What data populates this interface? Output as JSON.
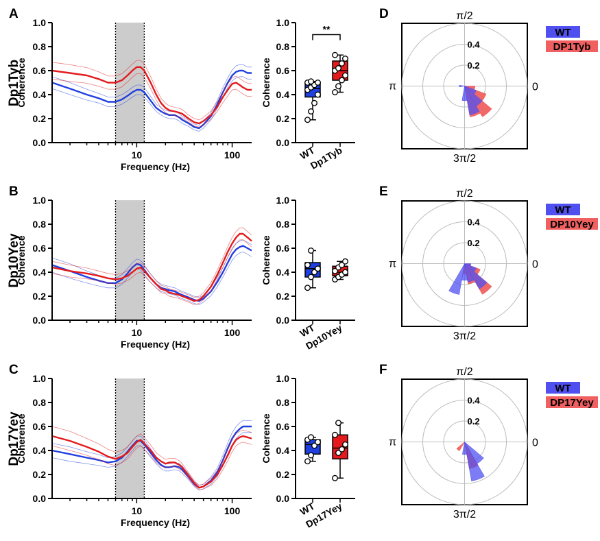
{
  "colors": {
    "wt": "#1f3fe0",
    "dp": "#e41a1c",
    "wt_fill": "#5050f0",
    "dp_fill": "#f06060",
    "overlap": "#5a2aa8",
    "shade": "#cccccc"
  },
  "chart_data": [
    {
      "panel": "A",
      "type": "line",
      "row_label": "Dp1Tyb",
      "xlabel": "Frequency (Hz)",
      "ylabel": "Coherence",
      "x_scale": "log",
      "xlim": [
        1.3,
        160
      ],
      "ylim": [
        0,
        1.0
      ],
      "xticks": [
        "10",
        "100"
      ],
      "yticks": [
        "0.0",
        "0.2",
        "0.4",
        "0.6",
        "0.8",
        "1.0"
      ],
      "shaded_band_hz": [
        6,
        12
      ],
      "x": [
        1.3,
        2,
        3,
        4,
        5,
        6,
        7,
        8,
        9,
        10,
        11,
        12,
        14,
        16,
        18,
        20,
        22,
        25,
        28,
        30,
        35,
        40,
        45,
        50,
        60,
        70,
        80,
        90,
        100,
        110,
        120,
        130,
        145,
        160
      ],
      "series": [
        {
          "key": "wt",
          "values": [
            0.5,
            0.45,
            0.4,
            0.37,
            0.34,
            0.34,
            0.36,
            0.39,
            0.42,
            0.44,
            0.44,
            0.42,
            0.35,
            0.29,
            0.26,
            0.24,
            0.23,
            0.23,
            0.21,
            0.19,
            0.16,
            0.13,
            0.12,
            0.15,
            0.22,
            0.32,
            0.42,
            0.5,
            0.56,
            0.59,
            0.6,
            0.6,
            0.58,
            0.58
          ],
          "sem": [
            0.05,
            0.05,
            0.045,
            0.04,
            0.04,
            0.04,
            0.04,
            0.04,
            0.04,
            0.04,
            0.04,
            0.04,
            0.035,
            0.03,
            0.03,
            0.03,
            0.03,
            0.03,
            0.03,
            0.03,
            0.025,
            0.025,
            0.025,
            0.03,
            0.03,
            0.035,
            0.04,
            0.04,
            0.045,
            0.05,
            0.05,
            0.05,
            0.05,
            0.05
          ]
        },
        {
          "key": "dp",
          "values": [
            0.6,
            0.58,
            0.56,
            0.53,
            0.5,
            0.5,
            0.52,
            0.56,
            0.6,
            0.63,
            0.63,
            0.6,
            0.5,
            0.4,
            0.33,
            0.29,
            0.27,
            0.26,
            0.25,
            0.24,
            0.2,
            0.17,
            0.16,
            0.18,
            0.23,
            0.3,
            0.38,
            0.44,
            0.49,
            0.5,
            0.48,
            0.46,
            0.44,
            0.44
          ],
          "sem": [
            0.07,
            0.07,
            0.065,
            0.06,
            0.055,
            0.055,
            0.055,
            0.055,
            0.055,
            0.055,
            0.055,
            0.055,
            0.05,
            0.045,
            0.04,
            0.04,
            0.035,
            0.035,
            0.035,
            0.035,
            0.03,
            0.03,
            0.03,
            0.03,
            0.035,
            0.04,
            0.045,
            0.05,
            0.05,
            0.055,
            0.055,
            0.055,
            0.055,
            0.055
          ]
        }
      ]
    },
    {
      "panel": "A2",
      "type": "box",
      "ylabel": "Coherence",
      "ylim": [
        0,
        1.0
      ],
      "yticks": [
        "0.0",
        "0.2",
        "0.4",
        "0.6",
        "0.8",
        "1.0"
      ],
      "significance": "**",
      "categories": [
        "WT",
        "Dp1Tyb"
      ],
      "boxes": [
        {
          "key": "wt",
          "min": 0.19,
          "q1": 0.38,
          "median": 0.45,
          "q3": 0.5,
          "max": 0.51,
          "points": [
            0.19,
            0.26,
            0.33,
            0.4,
            0.44,
            0.46,
            0.48,
            0.5,
            0.5,
            0.51
          ]
        },
        {
          "key": "dp",
          "min": 0.42,
          "q1": 0.52,
          "median": 0.6,
          "q3": 0.68,
          "max": 0.73,
          "points": [
            0.42,
            0.47,
            0.52,
            0.56,
            0.6,
            0.62,
            0.66,
            0.7,
            0.73
          ]
        }
      ]
    },
    {
      "panel": "D",
      "type": "polar",
      "ring_labels": [
        "0.2",
        "0.4"
      ],
      "rmax": 0.6,
      "angle_labels": [
        "π/2",
        "π",
        "0",
        "3π/2"
      ],
      "legend": [
        "WT",
        "DP1Tyb"
      ],
      "bin_width_deg": 20,
      "wt_bins": [
        {
          "angle": 330,
          "r": 0.12
        },
        {
          "angle": 310,
          "r": 0.22
        },
        {
          "angle": 290,
          "r": 0.28
        },
        {
          "angle": 270,
          "r": 0.14
        },
        {
          "angle": 180,
          "r": 0.05
        }
      ],
      "dp_bins": [
        {
          "angle": 350,
          "r": 0.1
        },
        {
          "angle": 330,
          "r": 0.22
        },
        {
          "angle": 310,
          "r": 0.34
        },
        {
          "angle": 290,
          "r": 0.3
        }
      ]
    },
    {
      "panel": "B",
      "type": "line",
      "row_label": "Dp10Yey",
      "xlabel": "Frequency (Hz)",
      "ylabel": "Coherence",
      "x_scale": "log",
      "xlim": [
        1.3,
        160
      ],
      "ylim": [
        0,
        1.0
      ],
      "xticks": [
        "10",
        "100"
      ],
      "yticks": [
        "0.0",
        "0.2",
        "0.4",
        "0.6",
        "0.8",
        "1.0"
      ],
      "shaded_band_hz": [
        6,
        12
      ],
      "x": [
        1.3,
        2,
        3,
        4,
        5,
        6,
        7,
        8,
        9,
        10,
        11,
        12,
        14,
        16,
        18,
        20,
        22,
        25,
        28,
        30,
        35,
        40,
        45,
        50,
        60,
        70,
        80,
        90,
        100,
        110,
        120,
        130,
        145,
        160
      ],
      "series": [
        {
          "key": "wt",
          "values": [
            0.46,
            0.41,
            0.36,
            0.33,
            0.31,
            0.31,
            0.34,
            0.39,
            0.44,
            0.47,
            0.46,
            0.42,
            0.35,
            0.3,
            0.27,
            0.26,
            0.25,
            0.24,
            0.22,
            0.21,
            0.19,
            0.17,
            0.16,
            0.18,
            0.24,
            0.32,
            0.4,
            0.48,
            0.55,
            0.59,
            0.61,
            0.62,
            0.6,
            0.58
          ],
          "sem": [
            0.06,
            0.06,
            0.05,
            0.045,
            0.04,
            0.04,
            0.04,
            0.04,
            0.04,
            0.04,
            0.04,
            0.04,
            0.035,
            0.03,
            0.03,
            0.03,
            0.03,
            0.03,
            0.03,
            0.03,
            0.03,
            0.03,
            0.03,
            0.03,
            0.035,
            0.04,
            0.04,
            0.045,
            0.05,
            0.05,
            0.05,
            0.05,
            0.05,
            0.05
          ]
        },
        {
          "key": "dp",
          "values": [
            0.44,
            0.41,
            0.39,
            0.37,
            0.35,
            0.34,
            0.35,
            0.37,
            0.4,
            0.43,
            0.44,
            0.41,
            0.35,
            0.3,
            0.26,
            0.25,
            0.23,
            0.22,
            0.21,
            0.2,
            0.18,
            0.16,
            0.17,
            0.2,
            0.28,
            0.38,
            0.48,
            0.57,
            0.64,
            0.69,
            0.72,
            0.72,
            0.69,
            0.66
          ],
          "sem": [
            0.05,
            0.05,
            0.045,
            0.04,
            0.04,
            0.04,
            0.04,
            0.04,
            0.04,
            0.04,
            0.04,
            0.04,
            0.035,
            0.03,
            0.03,
            0.03,
            0.03,
            0.03,
            0.03,
            0.03,
            0.03,
            0.03,
            0.03,
            0.03,
            0.035,
            0.04,
            0.04,
            0.045,
            0.05,
            0.05,
            0.05,
            0.05,
            0.05,
            0.05
          ]
        }
      ]
    },
    {
      "panel": "B2",
      "type": "box",
      "ylabel": "Coherence",
      "ylim": [
        0,
        1.0
      ],
      "yticks": [
        "0.0",
        "0.2",
        "0.4",
        "0.6",
        "0.8",
        "1.0"
      ],
      "categories": [
        "WT",
        "Dp10Yey"
      ],
      "boxes": [
        {
          "key": "wt",
          "min": 0.27,
          "q1": 0.36,
          "median": 0.43,
          "q3": 0.48,
          "max": 0.58,
          "points": [
            0.27,
            0.36,
            0.4,
            0.43,
            0.46,
            0.58
          ]
        },
        {
          "key": "dp",
          "min": 0.34,
          "q1": 0.37,
          "median": 0.4,
          "q3": 0.45,
          "max": 0.49,
          "points": [
            0.34,
            0.36,
            0.38,
            0.4,
            0.41,
            0.44,
            0.46,
            0.49
          ]
        }
      ]
    },
    {
      "panel": "E",
      "type": "polar",
      "ring_labels": [
        "0.2",
        "0.4"
      ],
      "rmax": 0.6,
      "angle_labels": [
        "π/2",
        "π",
        "0",
        "3π/2"
      ],
      "legend": [
        "WT",
        "DP10Yey"
      ],
      "bin_width_deg": 20,
      "wt_bins": [
        {
          "angle": 350,
          "r": 0.06
        },
        {
          "angle": 330,
          "r": 0.12
        },
        {
          "angle": 310,
          "r": 0.28
        },
        {
          "angle": 290,
          "r": 0.18
        },
        {
          "angle": 270,
          "r": 0.16
        },
        {
          "angle": 250,
          "r": 0.3
        }
      ],
      "dp_bins": [
        {
          "angle": 350,
          "r": 0.06
        },
        {
          "angle": 330,
          "r": 0.16
        },
        {
          "angle": 310,
          "r": 0.34
        },
        {
          "angle": 290,
          "r": 0.2
        },
        {
          "angle": 270,
          "r": 0.1
        }
      ]
    },
    {
      "panel": "C",
      "type": "line",
      "row_label": "Dp17Yey",
      "xlabel": "Frequency (Hz)",
      "ylabel": "Coherence",
      "x_scale": "log",
      "xlim": [
        1.3,
        160
      ],
      "ylim": [
        0,
        1.0
      ],
      "xticks": [
        "10",
        "100"
      ],
      "yticks": [
        "0.0",
        "0.2",
        "0.4",
        "0.6",
        "0.8",
        "1.0"
      ],
      "shaded_band_hz": [
        6,
        12
      ],
      "x": [
        1.3,
        2,
        3,
        4,
        5,
        6,
        7,
        8,
        9,
        10,
        11,
        12,
        14,
        16,
        18,
        20,
        22,
        25,
        28,
        30,
        35,
        40,
        45,
        50,
        60,
        70,
        80,
        90,
        100,
        110,
        120,
        130,
        145,
        160
      ],
      "series": [
        {
          "key": "wt",
          "values": [
            0.4,
            0.37,
            0.34,
            0.32,
            0.3,
            0.31,
            0.34,
            0.39,
            0.44,
            0.48,
            0.48,
            0.45,
            0.38,
            0.32,
            0.28,
            0.26,
            0.26,
            0.27,
            0.26,
            0.24,
            0.18,
            0.12,
            0.09,
            0.1,
            0.15,
            0.22,
            0.32,
            0.42,
            0.5,
            0.55,
            0.58,
            0.6,
            0.6,
            0.6
          ],
          "sem": [
            0.06,
            0.06,
            0.05,
            0.045,
            0.04,
            0.04,
            0.04,
            0.04,
            0.04,
            0.04,
            0.04,
            0.04,
            0.035,
            0.03,
            0.03,
            0.03,
            0.03,
            0.03,
            0.03,
            0.03,
            0.025,
            0.02,
            0.02,
            0.02,
            0.03,
            0.035,
            0.04,
            0.045,
            0.05,
            0.05,
            0.05,
            0.05,
            0.05,
            0.05
          ]
        },
        {
          "key": "dp",
          "values": [
            0.52,
            0.48,
            0.43,
            0.39,
            0.35,
            0.33,
            0.35,
            0.38,
            0.43,
            0.47,
            0.49,
            0.46,
            0.4,
            0.34,
            0.31,
            0.29,
            0.3,
            0.3,
            0.28,
            0.26,
            0.19,
            0.13,
            0.09,
            0.1,
            0.14,
            0.2,
            0.28,
            0.36,
            0.44,
            0.49,
            0.51,
            0.52,
            0.51,
            0.5
          ],
          "sem": [
            0.08,
            0.08,
            0.07,
            0.065,
            0.06,
            0.055,
            0.05,
            0.05,
            0.05,
            0.05,
            0.05,
            0.05,
            0.045,
            0.04,
            0.04,
            0.035,
            0.035,
            0.035,
            0.035,
            0.03,
            0.025,
            0.02,
            0.02,
            0.02,
            0.03,
            0.035,
            0.04,
            0.045,
            0.05,
            0.05,
            0.05,
            0.05,
            0.05,
            0.05
          ]
        }
      ]
    },
    {
      "panel": "C2",
      "type": "box",
      "ylabel": "Coherence",
      "ylim": [
        0,
        1.0
      ],
      "yticks": [
        "0.0",
        "0.2",
        "0.4",
        "0.6",
        "0.8",
        "1.0"
      ],
      "categories": [
        "WT",
        "Dp17Yey"
      ],
      "boxes": [
        {
          "key": "wt",
          "min": 0.31,
          "q1": 0.37,
          "median": 0.45,
          "q3": 0.49,
          "max": 0.51,
          "points": [
            0.31,
            0.36,
            0.44,
            0.47,
            0.49,
            0.51
          ]
        },
        {
          "key": "dp",
          "min": 0.17,
          "q1": 0.33,
          "median": 0.42,
          "q3": 0.53,
          "max": 0.63,
          "points": [
            0.17,
            0.38,
            0.41,
            0.45,
            0.53,
            0.63
          ]
        }
      ]
    },
    {
      "panel": "F",
      "type": "polar",
      "ring_labels": [
        "0.2",
        "0.4"
      ],
      "rmax": 0.6,
      "angle_labels": [
        "π/2",
        "π",
        "0",
        "3π/2"
      ],
      "legend": [
        "WT",
        "DP17Yey"
      ],
      "bin_width_deg": 20,
      "wt_bins": [
        {
          "angle": 310,
          "r": 0.24
        },
        {
          "angle": 290,
          "r": 0.38
        },
        {
          "angle": 270,
          "r": 0.12
        }
      ],
      "dp_bins": [
        {
          "angle": 290,
          "r": 0.26
        },
        {
          "angle": 230,
          "r": 0.1
        }
      ]
    }
  ]
}
